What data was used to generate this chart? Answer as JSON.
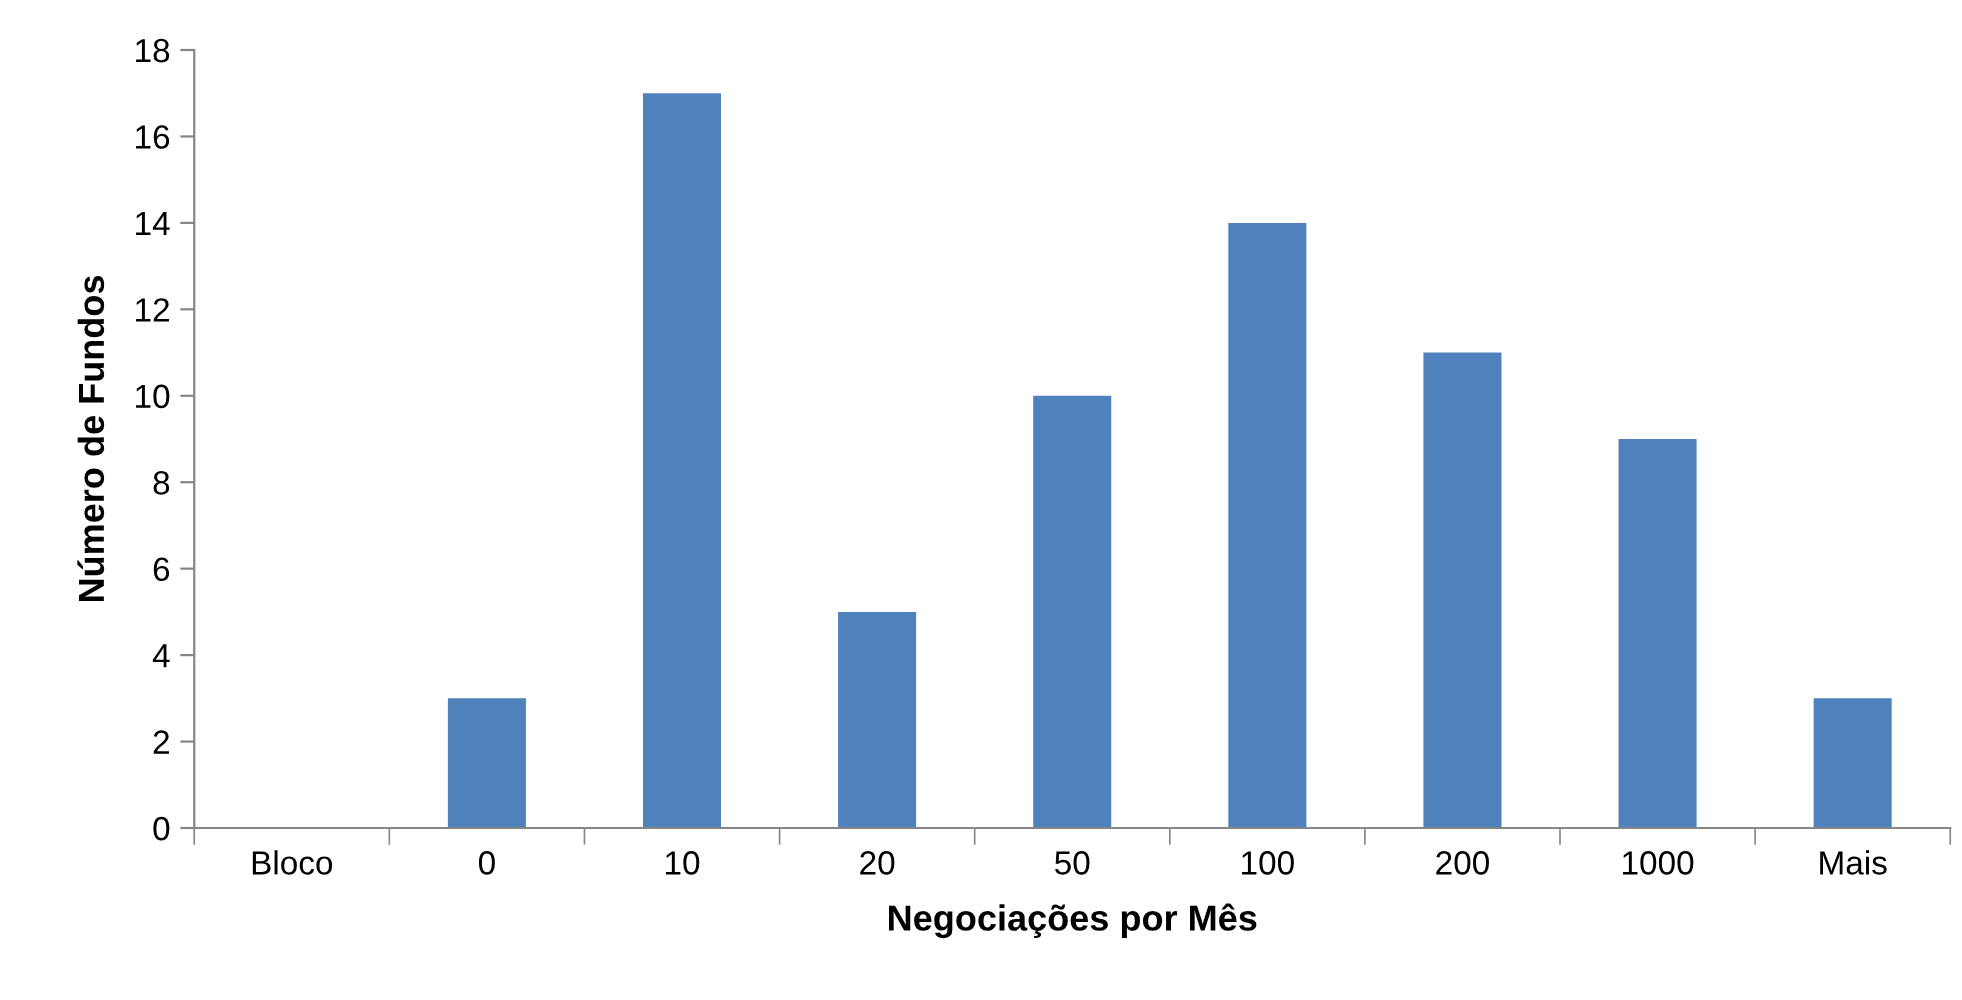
{
  "chart_data": {
    "type": "bar",
    "xlabel": "Negociações por Mês",
    "ylabel": "Número de Fundos",
    "categories": [
      "Bloco",
      "0",
      "10",
      "20",
      "50",
      "100",
      "200",
      "1000",
      "Mais"
    ],
    "values": [
      0,
      3,
      17,
      5,
      10,
      14,
      11,
      9,
      3
    ],
    "color": "#4f81bd",
    "ylim": [
      0,
      18
    ],
    "yticks": [
      0,
      2,
      4,
      6,
      8,
      10,
      12,
      14,
      16,
      18
    ],
    "grid": false,
    "legend": false
  }
}
